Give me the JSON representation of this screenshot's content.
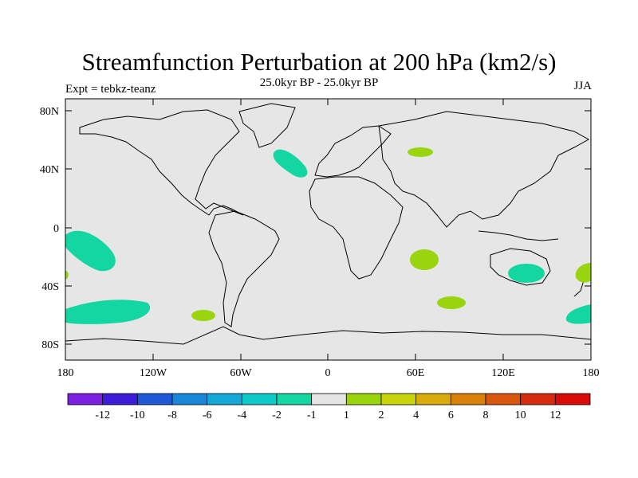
{
  "header": {
    "title": "Streamfunction Perturbation at 200 hPa (km2/s)",
    "subtitle": "25.0kyr BP - 25.0kyr BP",
    "left_note": "Expt = tebkz-teanz",
    "right_note": "JJA"
  },
  "axes": {
    "lat_labels": [
      "80N",
      "40N",
      "0",
      "40S",
      "80S"
    ],
    "lon_labels": [
      "180",
      "120W",
      "60W",
      "0",
      "60E",
      "120E",
      "180"
    ]
  },
  "colorbar": {
    "labels": [
      "-12",
      "-10",
      "-8",
      "-6",
      "-4",
      "-2",
      "-1",
      "1",
      "2",
      "4",
      "6",
      "8",
      "10",
      "12"
    ],
    "colors": [
      "#7b1fe0",
      "#3d1cd8",
      "#1f57d6",
      "#1a86d8",
      "#13a8d8",
      "#0fc8c8",
      "#14d6a0",
      "#e4e4e4",
      "#99d40c",
      "#c8d40a",
      "#d8ac0a",
      "#d8820c",
      "#d8560e",
      "#d62a10",
      "#d80a0a"
    ]
  },
  "colors": {
    "land_sea": "#e6e6e6",
    "negative_anomaly": "#14d6a0",
    "positive_anomaly": "#99d40c"
  }
}
